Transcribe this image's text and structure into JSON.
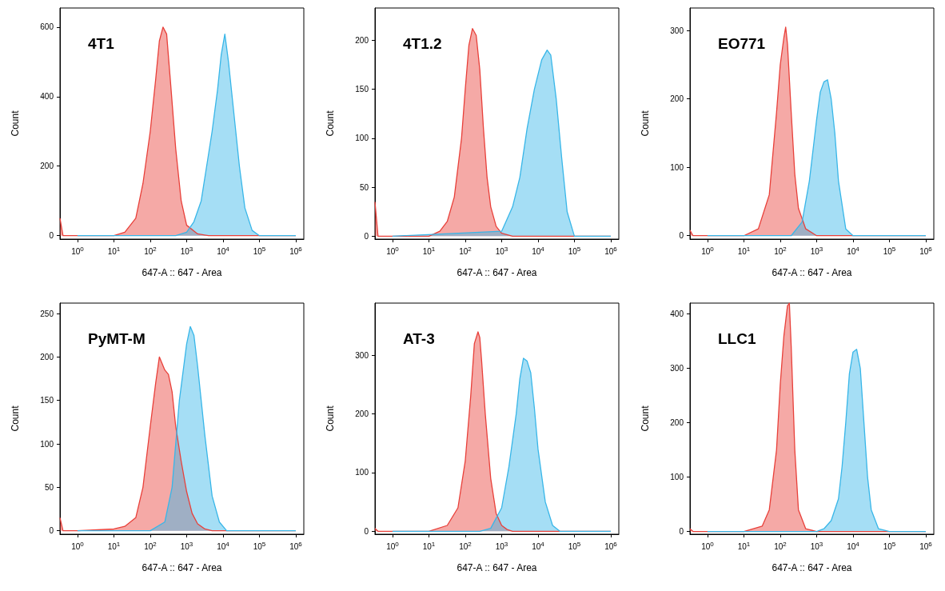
{
  "chart_data": [
    {
      "type": "area",
      "title": "4T1",
      "xlabel": "647-A :: 647 - Area",
      "ylabel": "Count",
      "log": "x",
      "xlim": [
        0.33,
        1660000
      ],
      "ylim": [
        -10,
        655
      ],
      "yticks": [
        0,
        200,
        400,
        600
      ],
      "xticks": [
        {
          "value": 1,
          "label": "10$^{0}$"
        },
        {
          "value": 10,
          "label": "10$^{1}$"
        },
        {
          "value": 100,
          "label": "10$^{2}$"
        },
        {
          "value": 1000,
          "label": "10$^{3}$"
        },
        {
          "value": 10000,
          "label": "10$^{4}$"
        },
        {
          "value": 100000,
          "label": "10$^{5}$"
        },
        {
          "value": 1000000,
          "label": "10$^{6}$"
        }
      ],
      "series": [
        {
          "color": "#e8403a",
          "x": [
            0.33,
            0.4,
            1,
            10,
            20,
            40,
            63,
            100,
            141,
            178,
            224,
            282,
            355,
            501,
            708,
            1000,
            2000,
            4000,
            1000000
          ],
          "values": [
            50,
            0,
            0,
            0,
            10,
            50,
            150,
            300,
            450,
            560,
            600,
            580,
            450,
            250,
            100,
            30,
            5,
            0,
            0
          ]
        },
        {
          "color": "#38b6e8",
          "x": [
            1,
            501,
            1000,
            1585,
            2512,
            3548,
            5012,
            7079,
            8913,
            11220,
            14125,
            19953,
            28184,
            39811,
            63096,
            100000,
            1000000
          ],
          "values": [
            0,
            0,
            10,
            40,
            100,
            200,
            300,
            420,
            520,
            580,
            500,
            350,
            200,
            80,
            15,
            0,
            0
          ]
        }
      ]
    },
    {
      "type": "area",
      "title": "4T1.2",
      "xlabel": "647-A :: 647 - Area",
      "ylabel": "Count",
      "log": "x",
      "xlim": [
        0.33,
        1660000
      ],
      "ylim": [
        -3,
        233
      ],
      "yticks": [
        0,
        50,
        100,
        150,
        200
      ],
      "xticks": [
        {
          "value": 1,
          "label": "10$^{0}$"
        },
        {
          "value": 10,
          "label": "10$^{1}$"
        },
        {
          "value": 100,
          "label": "10$^{2}$"
        },
        {
          "value": 1000,
          "label": "10$^{3}$"
        },
        {
          "value": 10000,
          "label": "10$^{4}$"
        },
        {
          "value": 100000,
          "label": "10$^{5}$"
        },
        {
          "value": 1000000,
          "label": "10$^{6}$"
        }
      ],
      "series": [
        {
          "color": "#e8403a",
          "x": [
            0.33,
            0.4,
            1,
            10,
            20,
            32,
            50,
            79,
            100,
            126,
            158,
            200,
            251,
            316,
            398,
            501,
            708,
            1000,
            2000,
            1000000
          ],
          "values": [
            35,
            0,
            0,
            0,
            5,
            15,
            40,
            100,
            150,
            195,
            212,
            205,
            170,
            110,
            60,
            30,
            10,
            3,
            0,
            0
          ]
        },
        {
          "color": "#38b6e8",
          "x": [
            1,
            1000,
            2000,
            3162,
            5012,
            7943,
            12589,
            17783,
            22387,
            31623,
            44668,
            63096,
            100000,
            1000000
          ],
          "values": [
            0,
            5,
            30,
            60,
            110,
            150,
            180,
            190,
            185,
            140,
            80,
            25,
            0,
            0
          ]
        }
      ]
    },
    {
      "type": "area",
      "title": "EO771",
      "xlabel": "647-A :: 647 - Area",
      "ylabel": "Count",
      "log": "x",
      "xlim": [
        0.33,
        1660000
      ],
      "ylim": [
        -5,
        333
      ],
      "yticks": [
        0,
        100,
        200,
        300
      ],
      "xticks": [
        {
          "value": 1,
          "label": "10$^{0}$"
        },
        {
          "value": 10,
          "label": "10$^{1}$"
        },
        {
          "value": 100,
          "label": "10$^{2}$"
        },
        {
          "value": 1000,
          "label": "10$^{3}$"
        },
        {
          "value": 10000,
          "label": "10$^{4}$"
        },
        {
          "value": 100000,
          "label": "10$^{5}$"
        },
        {
          "value": 1000000,
          "label": "10$^{6}$"
        }
      ],
      "series": [
        {
          "color": "#e8403a",
          "x": [
            0.33,
            0.4,
            1,
            10,
            25,
            50,
            79,
            100,
            126,
            141,
            158,
            200,
            251,
            316,
            501,
            1000,
            1000000
          ],
          "values": [
            8,
            0,
            0,
            0,
            10,
            60,
            180,
            250,
            290,
            305,
            280,
            180,
            90,
            40,
            10,
            0,
            0
          ]
        },
        {
          "color": "#38b6e8",
          "x": [
            1,
            200,
            398,
            631,
            1000,
            1259,
            1585,
            1995,
            2512,
            3162,
            3981,
            6310,
            10000,
            1000000
          ],
          "values": [
            0,
            0,
            20,
            80,
            170,
            210,
            225,
            228,
            200,
            150,
            80,
            10,
            0,
            0
          ]
        }
      ]
    },
    {
      "type": "area",
      "title": "PyMT-M",
      "xlabel": "647-A :: 647 - Area",
      "ylabel": "Count",
      "log": "x",
      "xlim": [
        0.33,
        1660000
      ],
      "ylim": [
        -4,
        262
      ],
      "yticks": [
        0,
        50,
        100,
        150,
        200,
        250
      ],
      "xticks": [
        {
          "value": 1,
          "label": "10$^{0}$"
        },
        {
          "value": 10,
          "label": "10$^{1}$"
        },
        {
          "value": 100,
          "label": "10$^{2}$"
        },
        {
          "value": 1000,
          "label": "10$^{3}$"
        },
        {
          "value": 10000,
          "label": "10$^{4}$"
        },
        {
          "value": 100000,
          "label": "10$^{5}$"
        },
        {
          "value": 1000000,
          "label": "10$^{6}$"
        }
      ],
      "series": [
        {
          "color": "#e8403a",
          "x": [
            0.33,
            0.4,
            1,
            10,
            20,
            40,
            63,
            100,
            141,
            178,
            251,
            316,
            398,
            501,
            708,
            1000,
            1413,
            2000,
            3162,
            5012,
            1000000
          ],
          "values": [
            15,
            0,
            0,
            2,
            5,
            15,
            50,
            120,
            170,
            200,
            185,
            180,
            160,
            120,
            80,
            45,
            20,
            8,
            2,
            0,
            0
          ]
        },
        {
          "color": "#38b6e8",
          "x": [
            1,
            100,
            251,
            398,
            631,
            1000,
            1259,
            1585,
            1995,
            2512,
            3162,
            5012,
            7943,
            12589,
            1000000
          ],
          "values": [
            0,
            0,
            10,
            50,
            150,
            215,
            235,
            225,
            190,
            150,
            110,
            40,
            10,
            0,
            0
          ]
        }
      ]
    },
    {
      "type": "area",
      "title": "AT-3",
      "xlabel": "647-A :: 647 - Area",
      "ylabel": "Count",
      "log": "x",
      "xlim": [
        0.33,
        1660000
      ],
      "ylim": [
        -5,
        389
      ],
      "yticks": [
        0,
        100,
        200,
        300
      ],
      "xticks": [
        {
          "value": 1,
          "label": "10$^{0}$"
        },
        {
          "value": 10,
          "label": "10$^{1}$"
        },
        {
          "value": 100,
          "label": "10$^{2}$"
        },
        {
          "value": 1000,
          "label": "10$^{3}$"
        },
        {
          "value": 10000,
          "label": "10$^{4}$"
        },
        {
          "value": 100000,
          "label": "10$^{5}$"
        },
        {
          "value": 1000000,
          "label": "10$^{6}$"
        }
      ],
      "series": [
        {
          "color": "#e8403a",
          "x": [
            0.33,
            0.4,
            1,
            10,
            32,
            63,
            100,
            141,
            178,
            224,
            251,
            282,
            355,
            501,
            708,
            1000,
            1413,
            2000,
            1000000
          ],
          "values": [
            5,
            0,
            0,
            0,
            10,
            40,
            120,
            230,
            320,
            340,
            330,
            290,
            200,
            90,
            30,
            10,
            3,
            0,
            0
          ]
        },
        {
          "color": "#38b6e8",
          "x": [
            1,
            251,
            501,
            1000,
            1585,
            2512,
            3162,
            3981,
            5012,
            6310,
            7943,
            10000,
            15849,
            25119,
            39811,
            1000000
          ],
          "values": [
            0,
            0,
            5,
            40,
            110,
            200,
            260,
            295,
            290,
            270,
            210,
            140,
            50,
            10,
            0,
            0
          ]
        }
      ]
    },
    {
      "type": "area",
      "title": "LLC1",
      "xlabel": "647-A :: 647 - Area",
      "ylabel": "Count",
      "log": "x",
      "xlim": [
        0.33,
        1660000
      ],
      "ylim": [
        -5,
        420
      ],
      "yticks": [
        0,
        100,
        200,
        300,
        400
      ],
      "xticks": [
        {
          "value": 1,
          "label": "10$^{0}$"
        },
        {
          "value": 10,
          "label": "10$^{1}$"
        },
        {
          "value": 100,
          "label": "10$^{2}$"
        },
        {
          "value": 1000,
          "label": "10$^{3}$"
        },
        {
          "value": 10000,
          "label": "10$^{4}$"
        },
        {
          "value": 100000,
          "label": "10$^{5}$"
        },
        {
          "value": 1000000,
          "label": "10$^{6}$"
        }
      ],
      "series": [
        {
          "color": "#e8403a",
          "x": [
            0.33,
            0.4,
            1,
            10,
            32,
            50,
            79,
            100,
            126,
            158,
            178,
            200,
            251,
            316,
            501,
            1000,
            1000000
          ],
          "values": [
            5,
            0,
            0,
            0,
            10,
            40,
            150,
            270,
            360,
            415,
            420,
            340,
            150,
            40,
            5,
            0,
            0
          ]
        },
        {
          "color": "#38b6e8",
          "x": [
            1,
            1000,
            1585,
            2512,
            3981,
            5012,
            6310,
            7943,
            10000,
            12589,
            15849,
            19953,
            25119,
            31623,
            50119,
            100000,
            1000000
          ],
          "values": [
            0,
            0,
            5,
            20,
            60,
            120,
            200,
            290,
            330,
            335,
            300,
            200,
            100,
            40,
            5,
            0,
            0
          ]
        }
      ]
    }
  ]
}
